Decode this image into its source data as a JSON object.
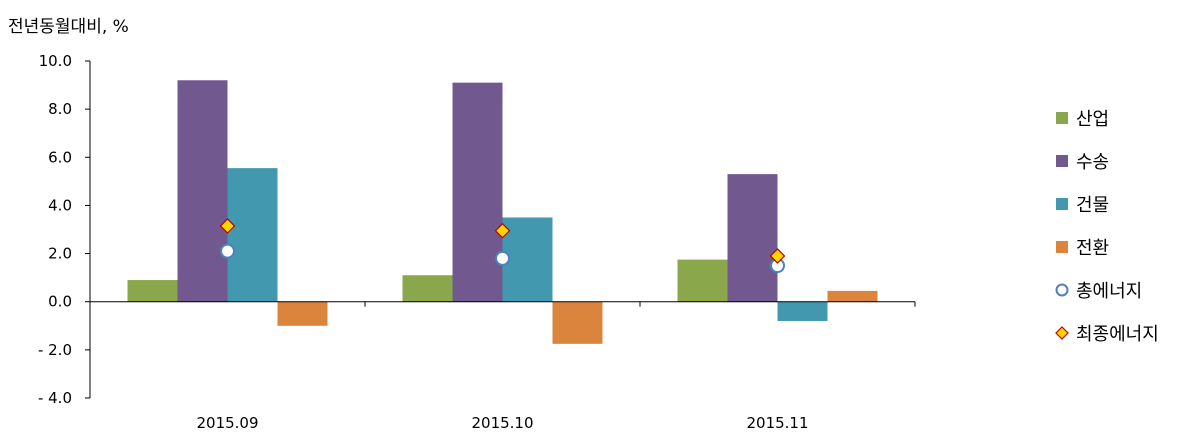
{
  "chart_data": {
    "type": "bar",
    "ylabel": "전년동월대비, %",
    "categories": [
      "2015.09",
      "2015.10",
      "2015.11"
    ],
    "ylim": [
      -4.0,
      10.0
    ],
    "yticks": [
      "10.0",
      "8.0",
      "6.0",
      "4.0",
      "2.0",
      "0.0",
      "- 2.0",
      "- 4.0"
    ],
    "ytick_values": [
      10,
      8,
      6,
      4,
      2,
      0,
      -2,
      -4
    ],
    "grid": false,
    "legend_position": "right",
    "series": [
      {
        "name": "산업",
        "kind": "bar",
        "color": "#8AA84B",
        "values": [
          0.9,
          1.1,
          1.75
        ]
      },
      {
        "name": "수송",
        "kind": "bar",
        "color": "#71588F",
        "values": [
          9.2,
          9.1,
          5.3
        ]
      },
      {
        "name": "건물",
        "kind": "bar",
        "color": "#4198AF",
        "values": [
          5.55,
          3.5,
          -0.8
        ]
      },
      {
        "name": "전환",
        "kind": "bar",
        "color": "#DB843D",
        "values": [
          -1.0,
          -1.75,
          0.45
        ]
      },
      {
        "name": "총에너지",
        "kind": "marker",
        "marker": "circle",
        "color": "#4F81BD",
        "values": [
          2.1,
          1.8,
          1.5
        ]
      },
      {
        "name": "최종에너지",
        "kind": "marker",
        "marker": "diamond",
        "color": "#FFD700",
        "values": [
          3.15,
          2.95,
          1.9
        ]
      }
    ]
  }
}
